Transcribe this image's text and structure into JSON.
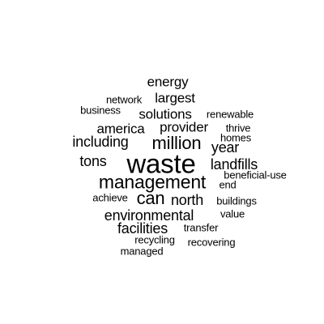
{
  "word_cloud": {
    "text_color": "#000000",
    "background": "#ffffff",
    "words": [
      {
        "text": "energy"
      },
      {
        "text": "network"
      },
      {
        "text": "largest"
      },
      {
        "text": "business"
      },
      {
        "text": "solutions"
      },
      {
        "text": "renewable"
      },
      {
        "text": "america"
      },
      {
        "text": "provider"
      },
      {
        "text": "thrive"
      },
      {
        "text": "homes"
      },
      {
        "text": "including"
      },
      {
        "text": "million"
      },
      {
        "text": "year"
      },
      {
        "text": "tons"
      },
      {
        "text": "waste"
      },
      {
        "text": "landfills"
      },
      {
        "text": "beneficial-use"
      },
      {
        "text": "management"
      },
      {
        "text": "end"
      },
      {
        "text": "achieve"
      },
      {
        "text": "can"
      },
      {
        "text": "north"
      },
      {
        "text": "buildings"
      },
      {
        "text": "environmental"
      },
      {
        "text": "value"
      },
      {
        "text": "facilities"
      },
      {
        "text": "transfer"
      },
      {
        "text": "recycling"
      },
      {
        "text": "recovering"
      },
      {
        "text": "managed"
      }
    ]
  }
}
